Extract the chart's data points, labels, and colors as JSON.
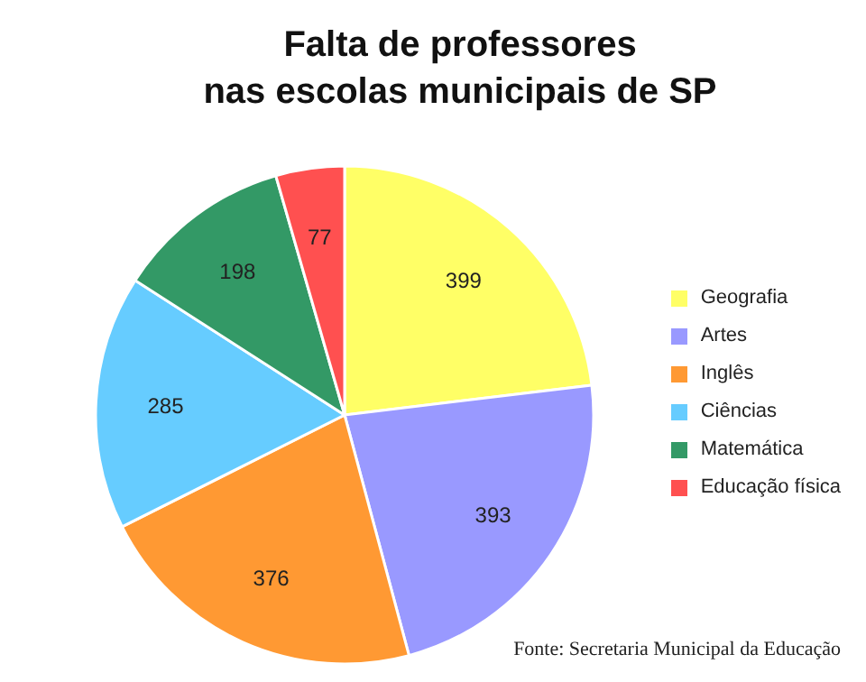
{
  "chart_data": {
    "type": "pie",
    "title": "Falta de professores\nnas escolas municipais de SP",
    "categories": [
      "Geografia",
      "Artes",
      "Inglês",
      "Ciências",
      "Matemática",
      "Educação física"
    ],
    "values": [
      399,
      393,
      376,
      285,
      198,
      77
    ],
    "colors": [
      "#ffff66",
      "#9999ff",
      "#ff9933",
      "#66ccff",
      "#339966",
      "#ff5050"
    ],
    "data_labels": true,
    "legend": "right",
    "annotations": [
      "Fonte: Secretaria Municipal da Educação"
    ]
  }
}
